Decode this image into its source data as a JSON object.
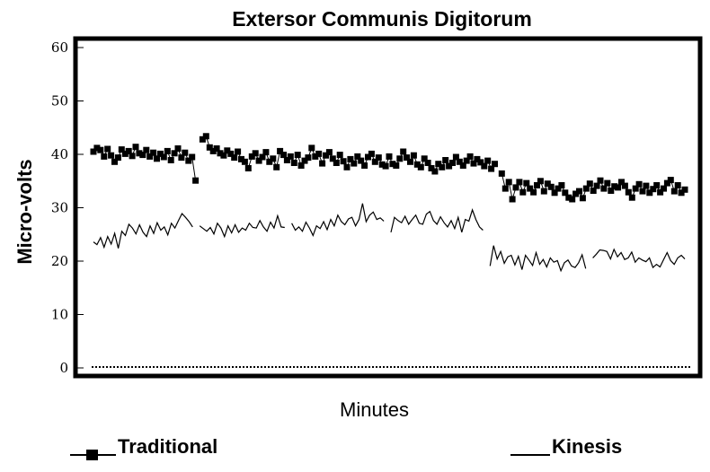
{
  "chart_data": {
    "type": "line",
    "title": "Extersor Communis Digitorum",
    "ylabel": "Micro-volts",
    "xlabel": "Minutes",
    "ylim": [
      0,
      60
    ],
    "yticks": [
      "0",
      "10",
      "20",
      "30",
      "40",
      "50",
      "60"
    ],
    "grid": false,
    "legend_position": "bottom",
    "series": [
      {
        "name": "Traditional",
        "marker": "square",
        "values": [
          40.5,
          41.2,
          40.8,
          39.6,
          41,
          39.8,
          38.6,
          39.4,
          40.9,
          40.1,
          40.6,
          39.7,
          41.4,
          40.2,
          39.9,
          40.8,
          39.6,
          40.3,
          39.2,
          40.1,
          39.5,
          40.6,
          38.9,
          40.2,
          41.1,
          39.4,
          40.3,
          38.8,
          39.5,
          35.1,
          null,
          42.8,
          43.4,
          41.3,
          40.6,
          41.1,
          40.2,
          39.8,
          40.7,
          40.1,
          39.4,
          40.5,
          39.1,
          38.6,
          37.4,
          39.6,
          40.2,
          38.8,
          39.5,
          40.4,
          38.6,
          39.2,
          37.6,
          40.6,
          39.9,
          38.9,
          39.6,
          38.4,
          39.9,
          37.9,
          38.8,
          39.4,
          41.2,
          39.6,
          40.1,
          38.3,
          39.8,
          40.4,
          39.2,
          38.4,
          39.9,
          38.7,
          37.6,
          39.1,
          38.3,
          39.6,
          38.8,
          37.9,
          39.5,
          40.1,
          38.6,
          39.4,
          38.1,
          37.8,
          39.6,
          38.2,
          37.9,
          39.2,
          40.5,
          39.4,
          38.6,
          39.8,
          38.1,
          37.6,
          39.2,
          38.4,
          37.4,
          36.8,
          38.2,
          37.6,
          38.9,
          37.8,
          38.4,
          39.5,
          38.6,
          37.9,
          38.8,
          39.6,
          38.3,
          39.1,
          38.5,
          37.8,
          38.8,
          37.3,
          38.2,
          null,
          36.4,
          33.6,
          34.8,
          31.6,
          33.8,
          34.8,
          32.9,
          34.6,
          33.6,
          32.9,
          34.2,
          35,
          33.1,
          34.5,
          33.9,
          32.8,
          33.6,
          34.2,
          32.8,
          31.9,
          31.6,
          32.6,
          33.1,
          31.8,
          33.6,
          34.5,
          33.2,
          34.1,
          35.1,
          33.6,
          34.6,
          33.2,
          34,
          33.8,
          34.8,
          34.1,
          32.9,
          31.9,
          33.6,
          34.4,
          33.1,
          34.1,
          32.8,
          33.5,
          34.2,
          32.9,
          33.6,
          34.6,
          35.2,
          33.1,
          34.2,
          32.8,
          33.4
        ]
      },
      {
        "name": "Kinesis",
        "marker": "none",
        "values": [
          23.6,
          23.1,
          24.4,
          22.6,
          24.6,
          23.2,
          25.2,
          22.4,
          25.6,
          24.8,
          26.9,
          26.2,
          25.1,
          26.8,
          25.4,
          24.6,
          26.6,
          25.2,
          27.2,
          25.8,
          26.4,
          24.9,
          27.1,
          26.2,
          27.6,
          28.9,
          28.2,
          27.4,
          26.4,
          null,
          26.6,
          26.1,
          25.6,
          26.3,
          25.1,
          27.1,
          26.2,
          24.6,
          26.6,
          25.3,
          26.8,
          25.4,
          26.2,
          25.8,
          27.1,
          26.3,
          26.2,
          27.6,
          26.4,
          25.6,
          27.3,
          26.2,
          28.5,
          26.4,
          26.3,
          null,
          27.1,
          25.8,
          26.4,
          25.6,
          27.3,
          26.2,
          24.8,
          26.6,
          26.1,
          27.4,
          25.9,
          27.8,
          26.6,
          28.6,
          27.4,
          26.8,
          27.9,
          28.2,
          26.6,
          27.8,
          30.8,
          27.4,
          28.6,
          29.2,
          27.8,
          28.1,
          27.5,
          null,
          25.4,
          28.2,
          27.6,
          27.2,
          28.4,
          26.9,
          27.8,
          28.6,
          27.1,
          26.9,
          28.8,
          29.3,
          27.6,
          26.9,
          28.3,
          27.2,
          26.4,
          27.6,
          26.1,
          28.2,
          25.4,
          27.8,
          27.5,
          29.6,
          27.8,
          26.4,
          25.8,
          null,
          19.1,
          22.9,
          20.4,
          21.8,
          19.6,
          20.8,
          21.1,
          19.3,
          20.9,
          18.4,
          21.1,
          20.2,
          19.2,
          21.6,
          19.4,
          20.3,
          18.9,
          20.6,
          19.8,
          20.1,
          18.2,
          19.7,
          20.2,
          19.1,
          18.8,
          19.7,
          21.2,
          18.6,
          null,
          20.6,
          21.3,
          22.1,
          22,
          21.8,
          20.4,
          22.2,
          20.8,
          21.6,
          20.3,
          20.6,
          21.7,
          19.8,
          20.6,
          20.2,
          19.9,
          20.6,
          18.8,
          19.4,
          18.9,
          20.3,
          21.6,
          20.1,
          19.4,
          20.6,
          21.1,
          20.4
        ]
      }
    ]
  }
}
